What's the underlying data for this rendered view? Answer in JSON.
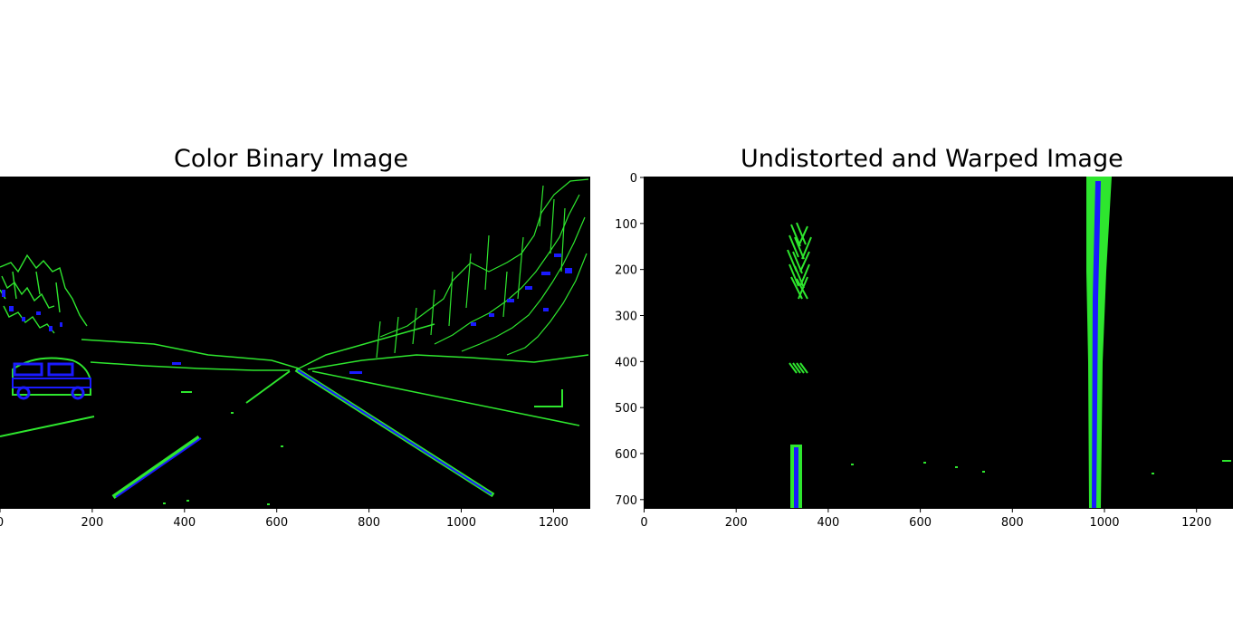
{
  "figure": {
    "panels": [
      {
        "title": "Color Binary Image",
        "x_ticks": [
          "0",
          "200",
          "400",
          "600",
          "800",
          "1000",
          "1200"
        ],
        "y_ticks": []
      },
      {
        "title": "Undistorted and Warped Image",
        "x_ticks": [
          "0",
          "200",
          "400",
          "600",
          "800",
          "1000",
          "1200"
        ],
        "y_ticks": [
          "0",
          "100",
          "200",
          "300",
          "400",
          "500",
          "600",
          "700"
        ]
      }
    ],
    "colors": {
      "background": "#000000",
      "edge_green": "#2ee62e",
      "edge_blue": "#1a1aff"
    }
  }
}
